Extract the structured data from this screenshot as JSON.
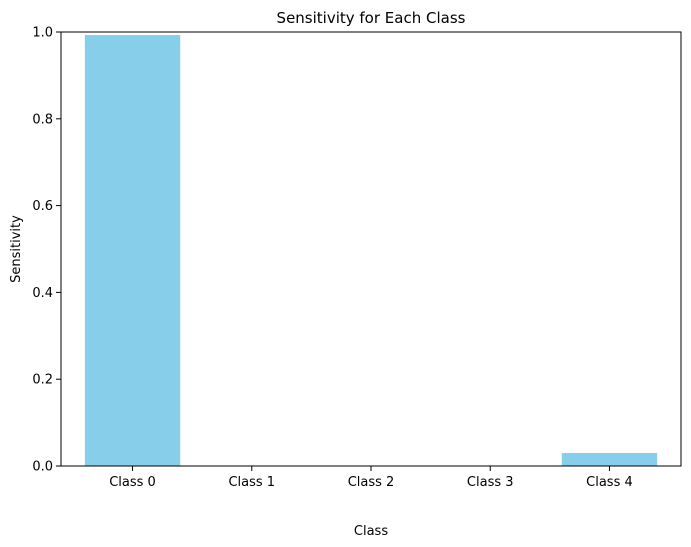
{
  "chart_data": {
    "type": "bar",
    "title": "Sensitivity for Each Class",
    "xlabel": "Class",
    "ylabel": "Sensitivity",
    "categories": [
      "Class 0",
      "Class 1",
      "Class 2",
      "Class 3",
      "Class 4"
    ],
    "values": [
      0.993,
      0.0,
      0.0,
      0.0,
      0.03
    ],
    "ylim": [
      0,
      1.0
    ],
    "yticks": [
      0.0,
      0.2,
      0.4,
      0.6,
      0.8,
      1.0
    ],
    "ytick_labels": [
      "0.0",
      "0.2",
      "0.4",
      "0.6",
      "0.8",
      "1.0"
    ],
    "bar_color": "#87CEEB",
    "grid": false,
    "legend": "none"
  }
}
